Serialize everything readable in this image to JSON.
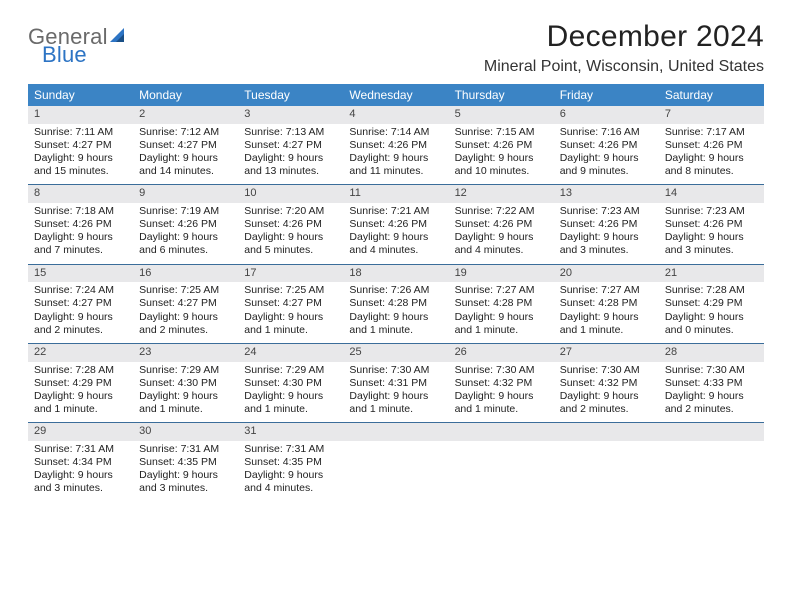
{
  "logo": {
    "word1": "General",
    "word2": "Blue",
    "gray": "#6a6a6a",
    "blue": "#2d74c4"
  },
  "title": "December 2024",
  "location": "Mineral Point, Wisconsin, United States",
  "style": {
    "header_bg": "#3b84c5",
    "week_divider": "#3b6d9a",
    "daynum_bg": "#e8e8ea",
    "page_bg": "#ffffff",
    "text_color": "#222222",
    "title_fontsize": 30,
    "location_fontsize": 16,
    "cell_fontsize": 10.5,
    "columns": 7
  },
  "days_of_week": [
    "Sunday",
    "Monday",
    "Tuesday",
    "Wednesday",
    "Thursday",
    "Friday",
    "Saturday"
  ],
  "weeks": [
    [
      {
        "n": "1",
        "sr": "Sunrise: 7:11 AM",
        "ss": "Sunset: 4:27 PM",
        "d1": "Daylight: 9 hours",
        "d2": "and 15 minutes."
      },
      {
        "n": "2",
        "sr": "Sunrise: 7:12 AM",
        "ss": "Sunset: 4:27 PM",
        "d1": "Daylight: 9 hours",
        "d2": "and 14 minutes."
      },
      {
        "n": "3",
        "sr": "Sunrise: 7:13 AM",
        "ss": "Sunset: 4:27 PM",
        "d1": "Daylight: 9 hours",
        "d2": "and 13 minutes."
      },
      {
        "n": "4",
        "sr": "Sunrise: 7:14 AM",
        "ss": "Sunset: 4:26 PM",
        "d1": "Daylight: 9 hours",
        "d2": "and 11 minutes."
      },
      {
        "n": "5",
        "sr": "Sunrise: 7:15 AM",
        "ss": "Sunset: 4:26 PM",
        "d1": "Daylight: 9 hours",
        "d2": "and 10 minutes."
      },
      {
        "n": "6",
        "sr": "Sunrise: 7:16 AM",
        "ss": "Sunset: 4:26 PM",
        "d1": "Daylight: 9 hours",
        "d2": "and 9 minutes."
      },
      {
        "n": "7",
        "sr": "Sunrise: 7:17 AM",
        "ss": "Sunset: 4:26 PM",
        "d1": "Daylight: 9 hours",
        "d2": "and 8 minutes."
      }
    ],
    [
      {
        "n": "8",
        "sr": "Sunrise: 7:18 AM",
        "ss": "Sunset: 4:26 PM",
        "d1": "Daylight: 9 hours",
        "d2": "and 7 minutes."
      },
      {
        "n": "9",
        "sr": "Sunrise: 7:19 AM",
        "ss": "Sunset: 4:26 PM",
        "d1": "Daylight: 9 hours",
        "d2": "and 6 minutes."
      },
      {
        "n": "10",
        "sr": "Sunrise: 7:20 AM",
        "ss": "Sunset: 4:26 PM",
        "d1": "Daylight: 9 hours",
        "d2": "and 5 minutes."
      },
      {
        "n": "11",
        "sr": "Sunrise: 7:21 AM",
        "ss": "Sunset: 4:26 PM",
        "d1": "Daylight: 9 hours",
        "d2": "and 4 minutes."
      },
      {
        "n": "12",
        "sr": "Sunrise: 7:22 AM",
        "ss": "Sunset: 4:26 PM",
        "d1": "Daylight: 9 hours",
        "d2": "and 4 minutes."
      },
      {
        "n": "13",
        "sr": "Sunrise: 7:23 AM",
        "ss": "Sunset: 4:26 PM",
        "d1": "Daylight: 9 hours",
        "d2": "and 3 minutes."
      },
      {
        "n": "14",
        "sr": "Sunrise: 7:23 AM",
        "ss": "Sunset: 4:26 PM",
        "d1": "Daylight: 9 hours",
        "d2": "and 3 minutes."
      }
    ],
    [
      {
        "n": "15",
        "sr": "Sunrise: 7:24 AM",
        "ss": "Sunset: 4:27 PM",
        "d1": "Daylight: 9 hours",
        "d2": "and 2 minutes."
      },
      {
        "n": "16",
        "sr": "Sunrise: 7:25 AM",
        "ss": "Sunset: 4:27 PM",
        "d1": "Daylight: 9 hours",
        "d2": "and 2 minutes."
      },
      {
        "n": "17",
        "sr": "Sunrise: 7:25 AM",
        "ss": "Sunset: 4:27 PM",
        "d1": "Daylight: 9 hours",
        "d2": "and 1 minute."
      },
      {
        "n": "18",
        "sr": "Sunrise: 7:26 AM",
        "ss": "Sunset: 4:28 PM",
        "d1": "Daylight: 9 hours",
        "d2": "and 1 minute."
      },
      {
        "n": "19",
        "sr": "Sunrise: 7:27 AM",
        "ss": "Sunset: 4:28 PM",
        "d1": "Daylight: 9 hours",
        "d2": "and 1 minute."
      },
      {
        "n": "20",
        "sr": "Sunrise: 7:27 AM",
        "ss": "Sunset: 4:28 PM",
        "d1": "Daylight: 9 hours",
        "d2": "and 1 minute."
      },
      {
        "n": "21",
        "sr": "Sunrise: 7:28 AM",
        "ss": "Sunset: 4:29 PM",
        "d1": "Daylight: 9 hours",
        "d2": "and 0 minutes."
      }
    ],
    [
      {
        "n": "22",
        "sr": "Sunrise: 7:28 AM",
        "ss": "Sunset: 4:29 PM",
        "d1": "Daylight: 9 hours",
        "d2": "and 1 minute."
      },
      {
        "n": "23",
        "sr": "Sunrise: 7:29 AM",
        "ss": "Sunset: 4:30 PM",
        "d1": "Daylight: 9 hours",
        "d2": "and 1 minute."
      },
      {
        "n": "24",
        "sr": "Sunrise: 7:29 AM",
        "ss": "Sunset: 4:30 PM",
        "d1": "Daylight: 9 hours",
        "d2": "and 1 minute."
      },
      {
        "n": "25",
        "sr": "Sunrise: 7:30 AM",
        "ss": "Sunset: 4:31 PM",
        "d1": "Daylight: 9 hours",
        "d2": "and 1 minute."
      },
      {
        "n": "26",
        "sr": "Sunrise: 7:30 AM",
        "ss": "Sunset: 4:32 PM",
        "d1": "Daylight: 9 hours",
        "d2": "and 1 minute."
      },
      {
        "n": "27",
        "sr": "Sunrise: 7:30 AM",
        "ss": "Sunset: 4:32 PM",
        "d1": "Daylight: 9 hours",
        "d2": "and 2 minutes."
      },
      {
        "n": "28",
        "sr": "Sunrise: 7:30 AM",
        "ss": "Sunset: 4:33 PM",
        "d1": "Daylight: 9 hours",
        "d2": "and 2 minutes."
      }
    ],
    [
      {
        "n": "29",
        "sr": "Sunrise: 7:31 AM",
        "ss": "Sunset: 4:34 PM",
        "d1": "Daylight: 9 hours",
        "d2": "and 3 minutes."
      },
      {
        "n": "30",
        "sr": "Sunrise: 7:31 AM",
        "ss": "Sunset: 4:35 PM",
        "d1": "Daylight: 9 hours",
        "d2": "and 3 minutes."
      },
      {
        "n": "31",
        "sr": "Sunrise: 7:31 AM",
        "ss": "Sunset: 4:35 PM",
        "d1": "Daylight: 9 hours",
        "d2": "and 4 minutes."
      },
      {
        "empty": true
      },
      {
        "empty": true
      },
      {
        "empty": true
      },
      {
        "empty": true
      }
    ]
  ]
}
